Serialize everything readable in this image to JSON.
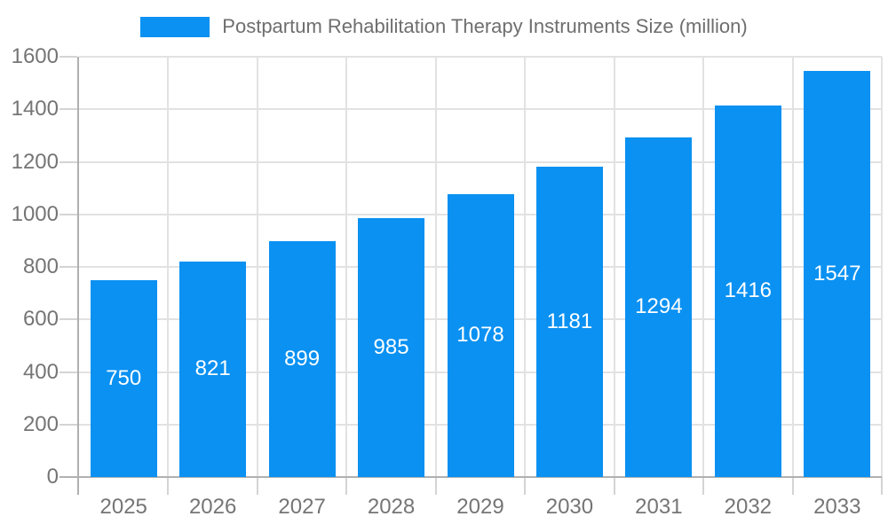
{
  "legend": {
    "label": "Postpartum Rehabilitation Therapy Instruments Size (million)"
  },
  "chart_data": {
    "type": "bar",
    "title": "Postpartum Rehabilitation Therapy Instruments Size (million)",
    "categories": [
      "2025",
      "2026",
      "2027",
      "2028",
      "2029",
      "2030",
      "2031",
      "2032",
      "2033"
    ],
    "values": [
      750,
      821,
      899,
      985,
      1078,
      1181,
      1294,
      1416,
      1547
    ],
    "xlabel": "",
    "ylabel": "",
    "ylim": [
      0,
      1600
    ],
    "yticks": [
      0,
      200,
      400,
      600,
      800,
      1000,
      1200,
      1400,
      1600
    ],
    "grid": true,
    "legend_position": "top",
    "bar_color": "#0a91f2",
    "value_label_color": "#ffffff",
    "axis_text_color": "#757575",
    "title_color": "#6e6e6e",
    "gridline_color": "#e2e2e2",
    "tick_color": "#d4d4d4",
    "axis_line_color": "#b0b0b0"
  }
}
